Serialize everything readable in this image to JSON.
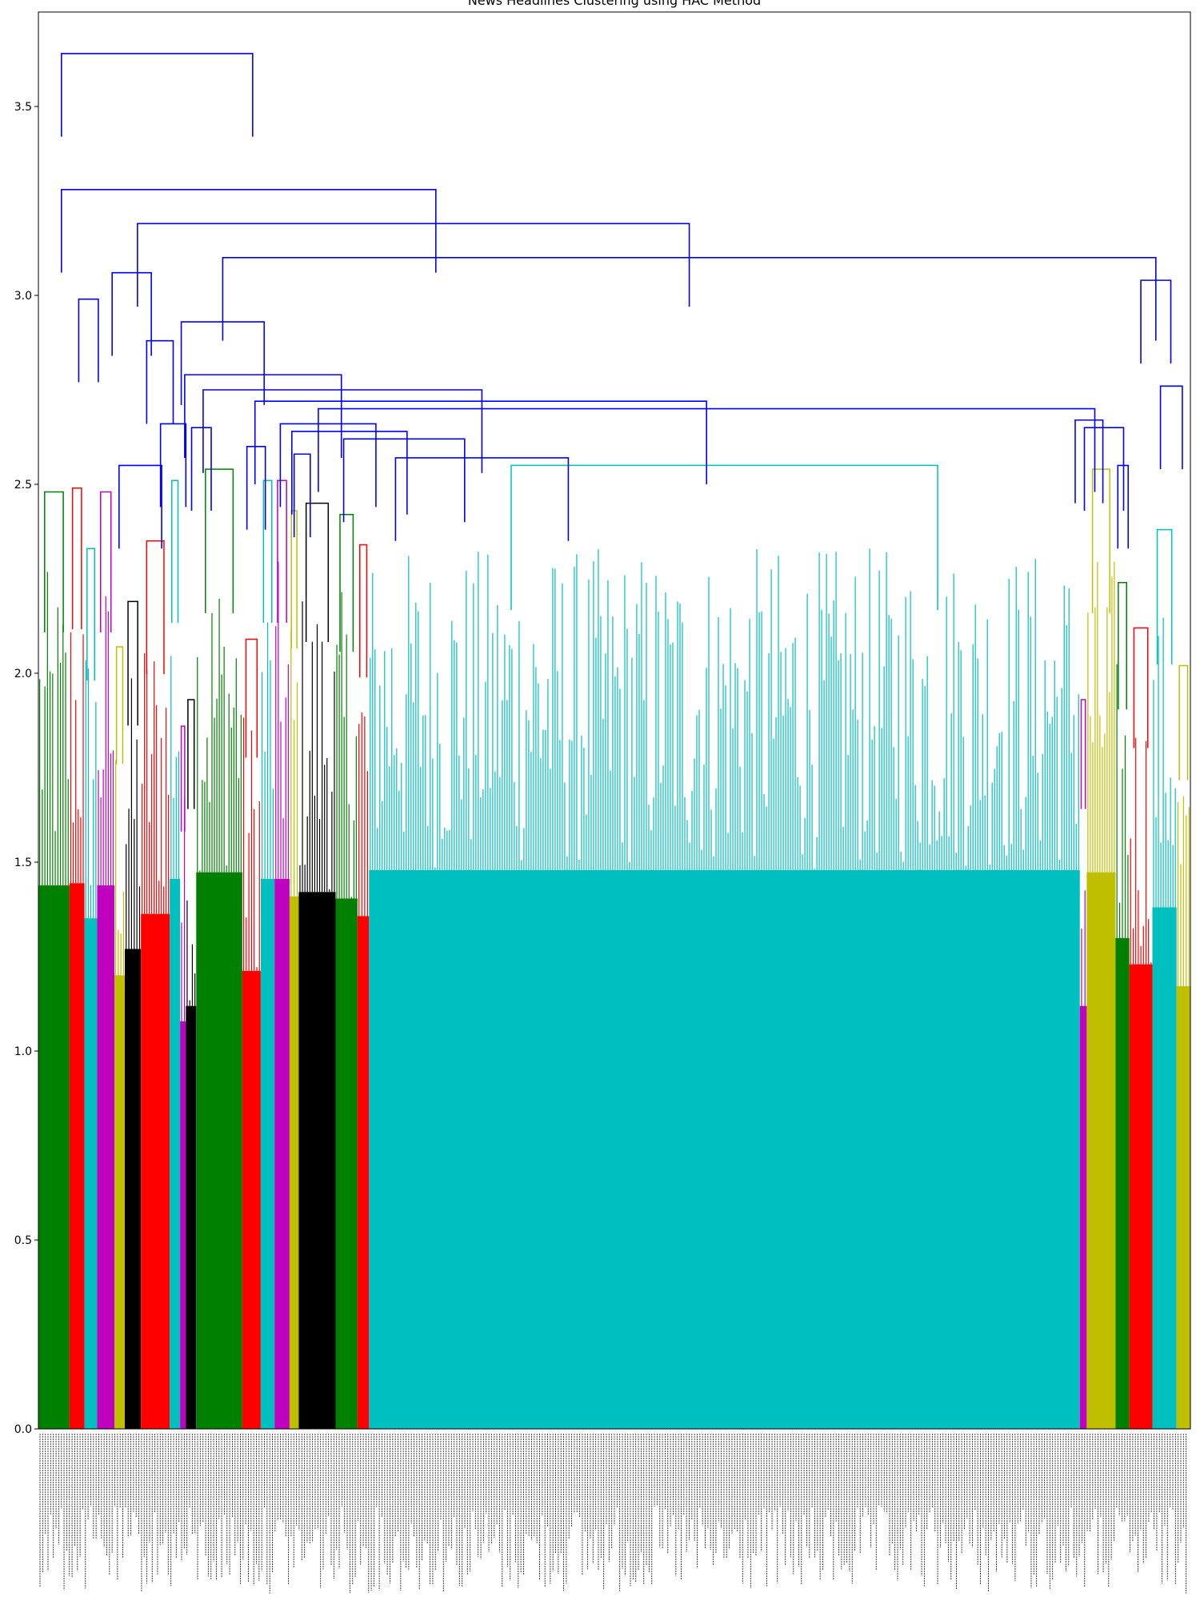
{
  "chart_data": {
    "type": "dendrogram",
    "title": "News Headlines Clustering using HAC Method",
    "xlabel": "",
    "ylabel": "",
    "ylim": [
      0,
      3.75
    ],
    "yticks": [
      0.0,
      0.5,
      1.0,
      1.5,
      2.0,
      2.5,
      3.0,
      3.5
    ],
    "ytick_labels": [
      "0.0",
      "0.5",
      "1.0",
      "1.5",
      "2.0",
      "2.5",
      "3.0",
      "3.5"
    ],
    "grid": false,
    "leaf_labels_note": "",
    "clusters": [
      {
        "color": "#008000",
        "leaf_start": 0.0,
        "leaf_end": 0.027,
        "top": 2.48
      },
      {
        "color": "#ff0000",
        "leaf_start": 0.027,
        "leaf_end": 0.04,
        "top": 2.49
      },
      {
        "color": "#00bfbf",
        "leaf_start": 0.04,
        "leaf_end": 0.051,
        "top": 2.33
      },
      {
        "color": "#bf00bf",
        "leaf_start": 0.051,
        "leaf_end": 0.066,
        "top": 2.48
      },
      {
        "color": "#bfbf00",
        "leaf_start": 0.066,
        "leaf_end": 0.075,
        "top": 2.07
      },
      {
        "color": "#000000",
        "leaf_start": 0.075,
        "leaf_end": 0.089,
        "top": 2.19
      },
      {
        "color": "#ff0000",
        "leaf_start": 0.089,
        "leaf_end": 0.114,
        "top": 2.35
      },
      {
        "color": "#00bfbf",
        "leaf_start": 0.114,
        "leaf_end": 0.123,
        "top": 2.51
      },
      {
        "color": "#bf00bf",
        "leaf_start": 0.123,
        "leaf_end": 0.128,
        "top": 1.86
      },
      {
        "color": "#000000",
        "leaf_start": 0.128,
        "leaf_end": 0.137,
        "top": 1.93
      },
      {
        "color": "#008000",
        "leaf_start": 0.137,
        "leaf_end": 0.177,
        "top": 2.54
      },
      {
        "color": "#ff0000",
        "leaf_start": 0.177,
        "leaf_end": 0.193,
        "top": 2.09
      },
      {
        "color": "#00bfbf",
        "leaf_start": 0.193,
        "leaf_end": 0.205,
        "top": 2.51
      },
      {
        "color": "#bf00bf",
        "leaf_start": 0.205,
        "leaf_end": 0.218,
        "top": 2.51
      },
      {
        "color": "#bfbf00",
        "leaf_start": 0.218,
        "leaf_end": 0.226,
        "top": 2.43
      },
      {
        "color": "#000000",
        "leaf_start": 0.226,
        "leaf_end": 0.258,
        "top": 2.45
      },
      {
        "color": "#008000",
        "leaf_start": 0.258,
        "leaf_end": 0.277,
        "top": 2.42
      },
      {
        "color": "#ff0000",
        "leaf_start": 0.277,
        "leaf_end": 0.287,
        "top": 2.34
      },
      {
        "color": "#00bfbf",
        "leaf_start": 0.287,
        "leaf_end": 0.904,
        "top": 2.55
      },
      {
        "color": "#bf00bf",
        "leaf_start": 0.904,
        "leaf_end": 0.91,
        "top": 1.93
      },
      {
        "color": "#bfbf00",
        "leaf_start": 0.91,
        "leaf_end": 0.935,
        "top": 2.54
      },
      {
        "color": "#008000",
        "leaf_start": 0.935,
        "leaf_end": 0.947,
        "top": 2.24
      },
      {
        "color": "#ff0000",
        "leaf_start": 0.947,
        "leaf_end": 0.967,
        "top": 2.12
      },
      {
        "color": "#00bfbf",
        "leaf_start": 0.967,
        "leaf_end": 0.988,
        "top": 2.38
      },
      {
        "color": "#bfbf00",
        "leaf_start": 0.988,
        "leaf_end": 1.0,
        "top": 2.02
      }
    ],
    "above_threshold_color": "#0000ff",
    "links": [
      {
        "x1": 0.02,
        "x2": 0.186,
        "h": 3.64
      },
      {
        "x1": 0.02,
        "x2": 0.345,
        "h": 3.28
      },
      {
        "x1": 0.086,
        "x2": 0.565,
        "h": 3.19
      },
      {
        "x1": 0.16,
        "x2": 0.97,
        "h": 3.1
      },
      {
        "x1": 0.957,
        "x2": 0.983,
        "h": 3.04
      },
      {
        "x1": 0.974,
        "x2": 0.993,
        "h": 2.76
      },
      {
        "x1": 0.064,
        "x2": 0.098,
        "h": 3.06
      },
      {
        "x1": 0.094,
        "x2": 0.117,
        "h": 2.88
      },
      {
        "x1": 0.07,
        "x2": 0.107,
        "h": 2.55
      },
      {
        "x1": 0.106,
        "x2": 0.128,
        "h": 2.66
      },
      {
        "x1": 0.124,
        "x2": 0.196,
        "h": 2.93
      },
      {
        "x1": 0.127,
        "x2": 0.263,
        "h": 2.79
      },
      {
        "x1": 0.143,
        "x2": 0.385,
        "h": 2.75
      },
      {
        "x1": 0.188,
        "x2": 0.58,
        "h": 2.72
      },
      {
        "x1": 0.243,
        "x2": 0.917,
        "h": 2.7
      },
      {
        "x1": 0.21,
        "x2": 0.293,
        "h": 2.66
      },
      {
        "x1": 0.22,
        "x2": 0.32,
        "h": 2.64
      },
      {
        "x1": 0.265,
        "x2": 0.37,
        "h": 2.62
      },
      {
        "x1": 0.31,
        "x2": 0.46,
        "h": 2.57
      },
      {
        "x1": 0.9,
        "x2": 0.924,
        "h": 2.67
      },
      {
        "x1": 0.908,
        "x2": 0.942,
        "h": 2.65
      },
      {
        "x1": 0.035,
        "x2": 0.052,
        "h": 2.99
      },
      {
        "x1": 0.133,
        "x2": 0.15,
        "h": 2.65
      },
      {
        "x1": 0.181,
        "x2": 0.197,
        "h": 2.6
      },
      {
        "x1": 0.222,
        "x2": 0.236,
        "h": 2.58
      },
      {
        "x1": 0.937,
        "x2": 0.946,
        "h": 2.55
      }
    ]
  }
}
